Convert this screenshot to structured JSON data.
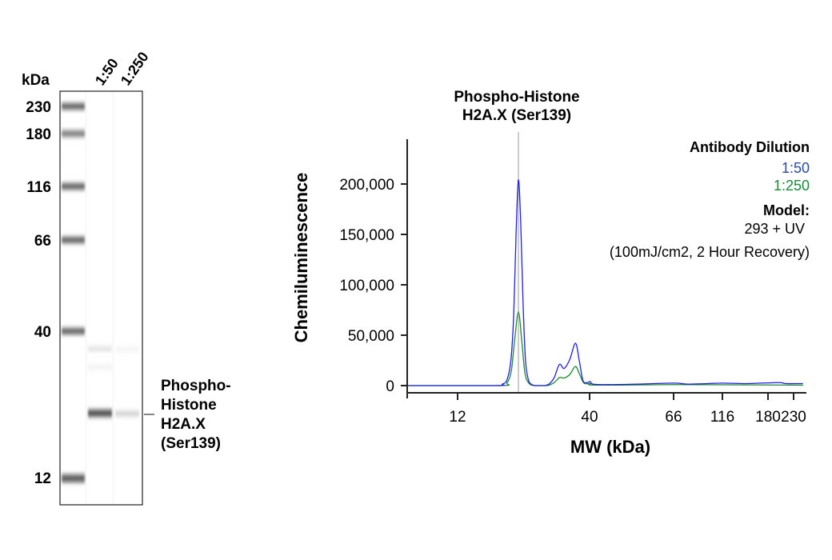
{
  "blot": {
    "unit_label": "kDa",
    "lane_labels": [
      "1:50",
      "1:250"
    ],
    "ladder": [
      "230",
      "180",
      "116",
      "66",
      "40",
      "12"
    ],
    "target_label": [
      "Phospho-",
      "Histone",
      "H2A.X",
      "(Ser139)"
    ],
    "band_intensity": {
      "1:50": 0.85,
      "1:250": 0.25
    }
  },
  "chart_data": {
    "type": "line",
    "title": [
      "Phospho-Histone",
      "H2A.X (Ser139)"
    ],
    "xlabel": "MW (kDa)",
    "ylabel": "Chemiluminescence",
    "x_ticks": [
      12,
      40,
      66,
      116,
      180,
      230
    ],
    "x_tick_labels": [
      "12",
      "40",
      "66",
      "116",
      "180",
      "230"
    ],
    "y_ticks": [
      0,
      50000,
      100000,
      150000,
      200000
    ],
    "y_tick_labels": [
      "0",
      "50,000",
      "100,000",
      "150,000",
      "200,000"
    ],
    "ylim": [
      0,
      240000
    ],
    "xlim": [
      1.3,
      250
    ],
    "marker_line_kda": 24.9,
    "grid": false,
    "legend": {
      "placement": "top-right",
      "title": "Antibody Dilution",
      "model_label": "Model:",
      "model_lines": [
        "293 + UV",
        "(100mJ/cm2, 2 Hour Recovery)"
      ]
    },
    "series": [
      {
        "name": "1:50",
        "color": "#1f1fe6",
        "legend_color": "#2a4aa8",
        "points": [
          [
            1.5,
            0
          ],
          [
            20,
            0
          ],
          [
            21.5,
            1500
          ],
          [
            22.5,
            6000
          ],
          [
            23.3,
            25000
          ],
          [
            23.9,
            70000
          ],
          [
            24.4,
            150000
          ],
          [
            24.9,
            204000
          ],
          [
            25.4,
            160000
          ],
          [
            25.9,
            80000
          ],
          [
            26.4,
            25000
          ],
          [
            27,
            6000
          ],
          [
            27.6,
            1500
          ],
          [
            28.5,
            0
          ],
          [
            30.5,
            0
          ],
          [
            31.5,
            2000
          ],
          [
            32.5,
            8000
          ],
          [
            33.6,
            21000
          ],
          [
            34.6,
            17000
          ],
          [
            35.8,
            26000
          ],
          [
            37,
            42000
          ],
          [
            37.8,
            25000
          ],
          [
            38.6,
            5000
          ],
          [
            39.5,
            3000
          ],
          [
            40.2,
            4000
          ],
          [
            41,
            1500
          ],
          [
            45,
            1000
          ],
          [
            55,
            1500
          ],
          [
            66,
            2500
          ],
          [
            80,
            1500
          ],
          [
            100,
            2000
          ],
          [
            116,
            2500
          ],
          [
            150,
            2000
          ],
          [
            200,
            3000
          ],
          [
            215,
            2000
          ],
          [
            248,
            2000
          ]
        ]
      },
      {
        "name": "1:250",
        "color": "#1a8a2a",
        "legend_color": "#1a8a3a",
        "points": [
          [
            1.5,
            0
          ],
          [
            21,
            0
          ],
          [
            22.5,
            3000
          ],
          [
            23.4,
            15000
          ],
          [
            24.1,
            45000
          ],
          [
            24.9,
            73000
          ],
          [
            25.6,
            45000
          ],
          [
            26.3,
            12000
          ],
          [
            27.2,
            2000
          ],
          [
            28.5,
            0
          ],
          [
            31,
            0
          ],
          [
            32.5,
            3000
          ],
          [
            33.6,
            8000
          ],
          [
            34.6,
            7500
          ],
          [
            35.8,
            11000
          ],
          [
            37,
            19000
          ],
          [
            37.9,
            11000
          ],
          [
            38.8,
            2500
          ],
          [
            40.2,
            2000
          ],
          [
            42,
            500
          ],
          [
            66,
            1000
          ],
          [
            116,
            800
          ],
          [
            230,
            500
          ],
          [
            248,
            400
          ]
        ]
      }
    ]
  }
}
